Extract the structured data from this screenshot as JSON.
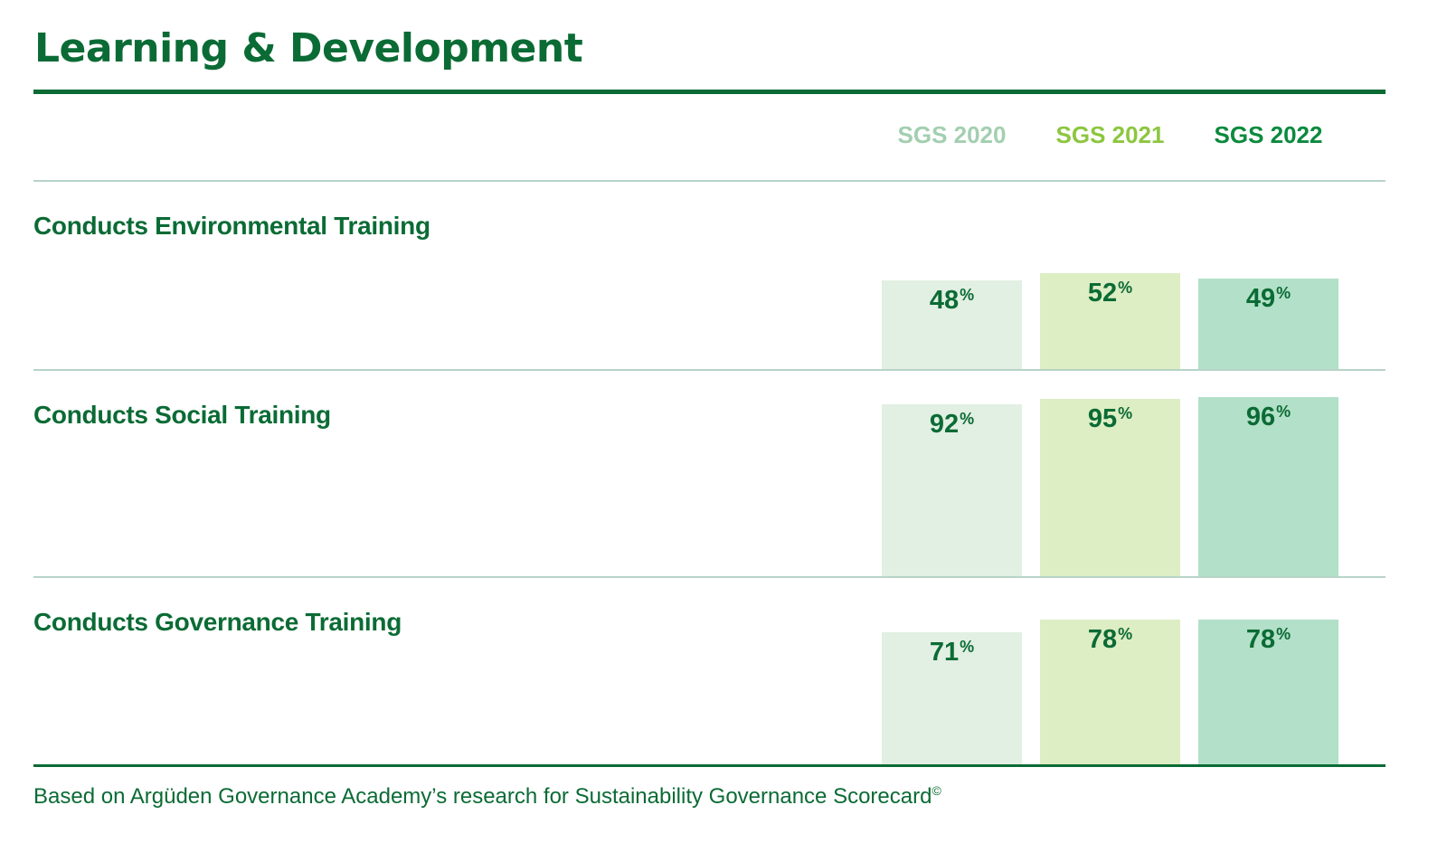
{
  "chart_data": {
    "type": "bar",
    "title": "Learning & Development",
    "series_headers": [
      "SGS 2020",
      "SGS 2021",
      "SGS 2022"
    ],
    "categories": [
      "Conducts Environmental Training",
      "Conducts Social Training",
      "Conducts Governance Training"
    ],
    "series": [
      {
        "name": "SGS 2020",
        "values": [
          48,
          92,
          71
        ],
        "bar_color": "#e2efe3",
        "header_color": "#a3cfb0"
      },
      {
        "name": "SGS 2021",
        "values": [
          52,
          95,
          78
        ],
        "bar_color": "#ddedc4",
        "header_color": "#8dc63f"
      },
      {
        "name": "SGS 2022",
        "values": [
          49,
          96,
          78
        ],
        "bar_color": "#b3e0c8",
        "header_color": "#0b8a3e"
      }
    ],
    "value_suffix": "%",
    "footnote": "Based on Argüden Governance Academy’s research for Sustainability Governance Scorecard",
    "footnote_mark": "©"
  }
}
